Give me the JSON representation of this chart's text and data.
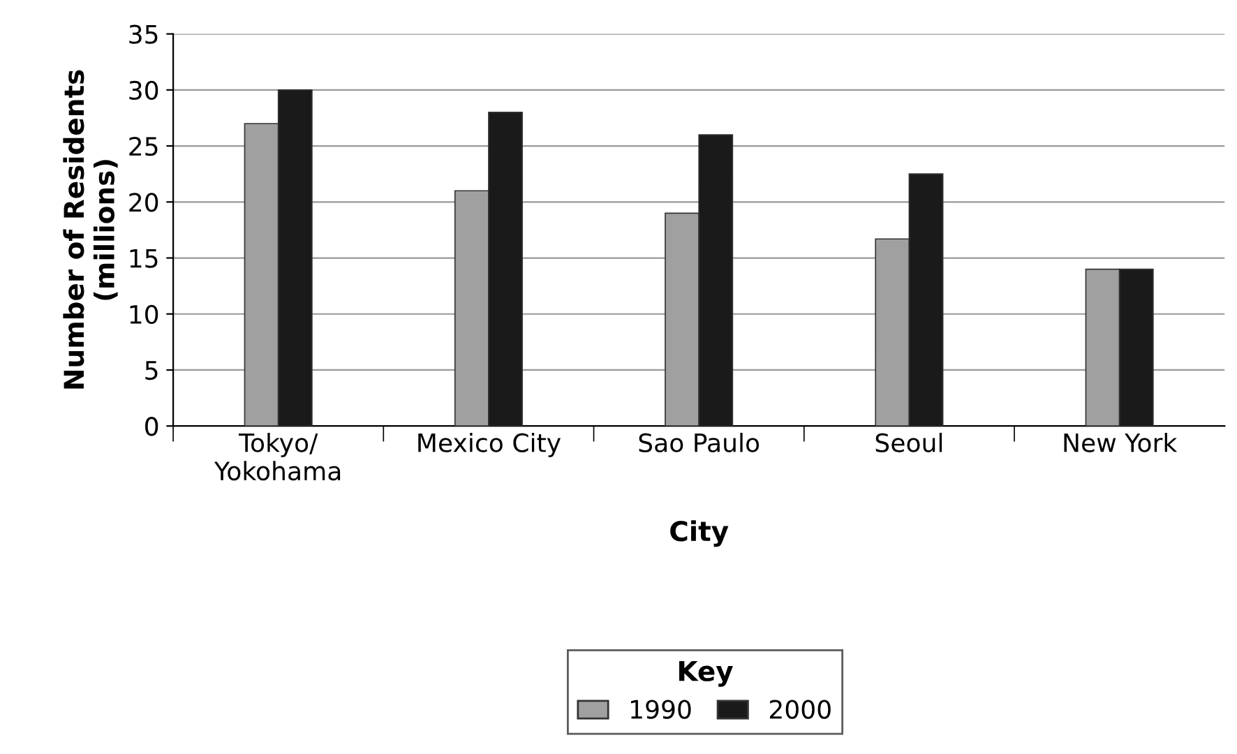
{
  "chart_data": {
    "type": "bar",
    "xlabel": "City",
    "ylabel": "Number of Residents\n(millions)",
    "legend_title": "Key",
    "categories": [
      "Tokyo/\nYokohama",
      "Mexico City",
      "Sao Paulo",
      "Seoul",
      "New York"
    ],
    "series": [
      {
        "name": "1990",
        "color": "#a0a0a0",
        "values": [
          27,
          21,
          19,
          16.7,
          14
        ]
      },
      {
        "name": "2000",
        "color": "#1a1a1a",
        "values": [
          30,
          28,
          26,
          22.5,
          14
        ]
      }
    ],
    "ylim": [
      0,
      35
    ],
    "yticks": [
      0,
      5,
      10,
      15,
      20,
      25,
      30,
      35
    ],
    "grid": "y",
    "legend": "bottom"
  }
}
